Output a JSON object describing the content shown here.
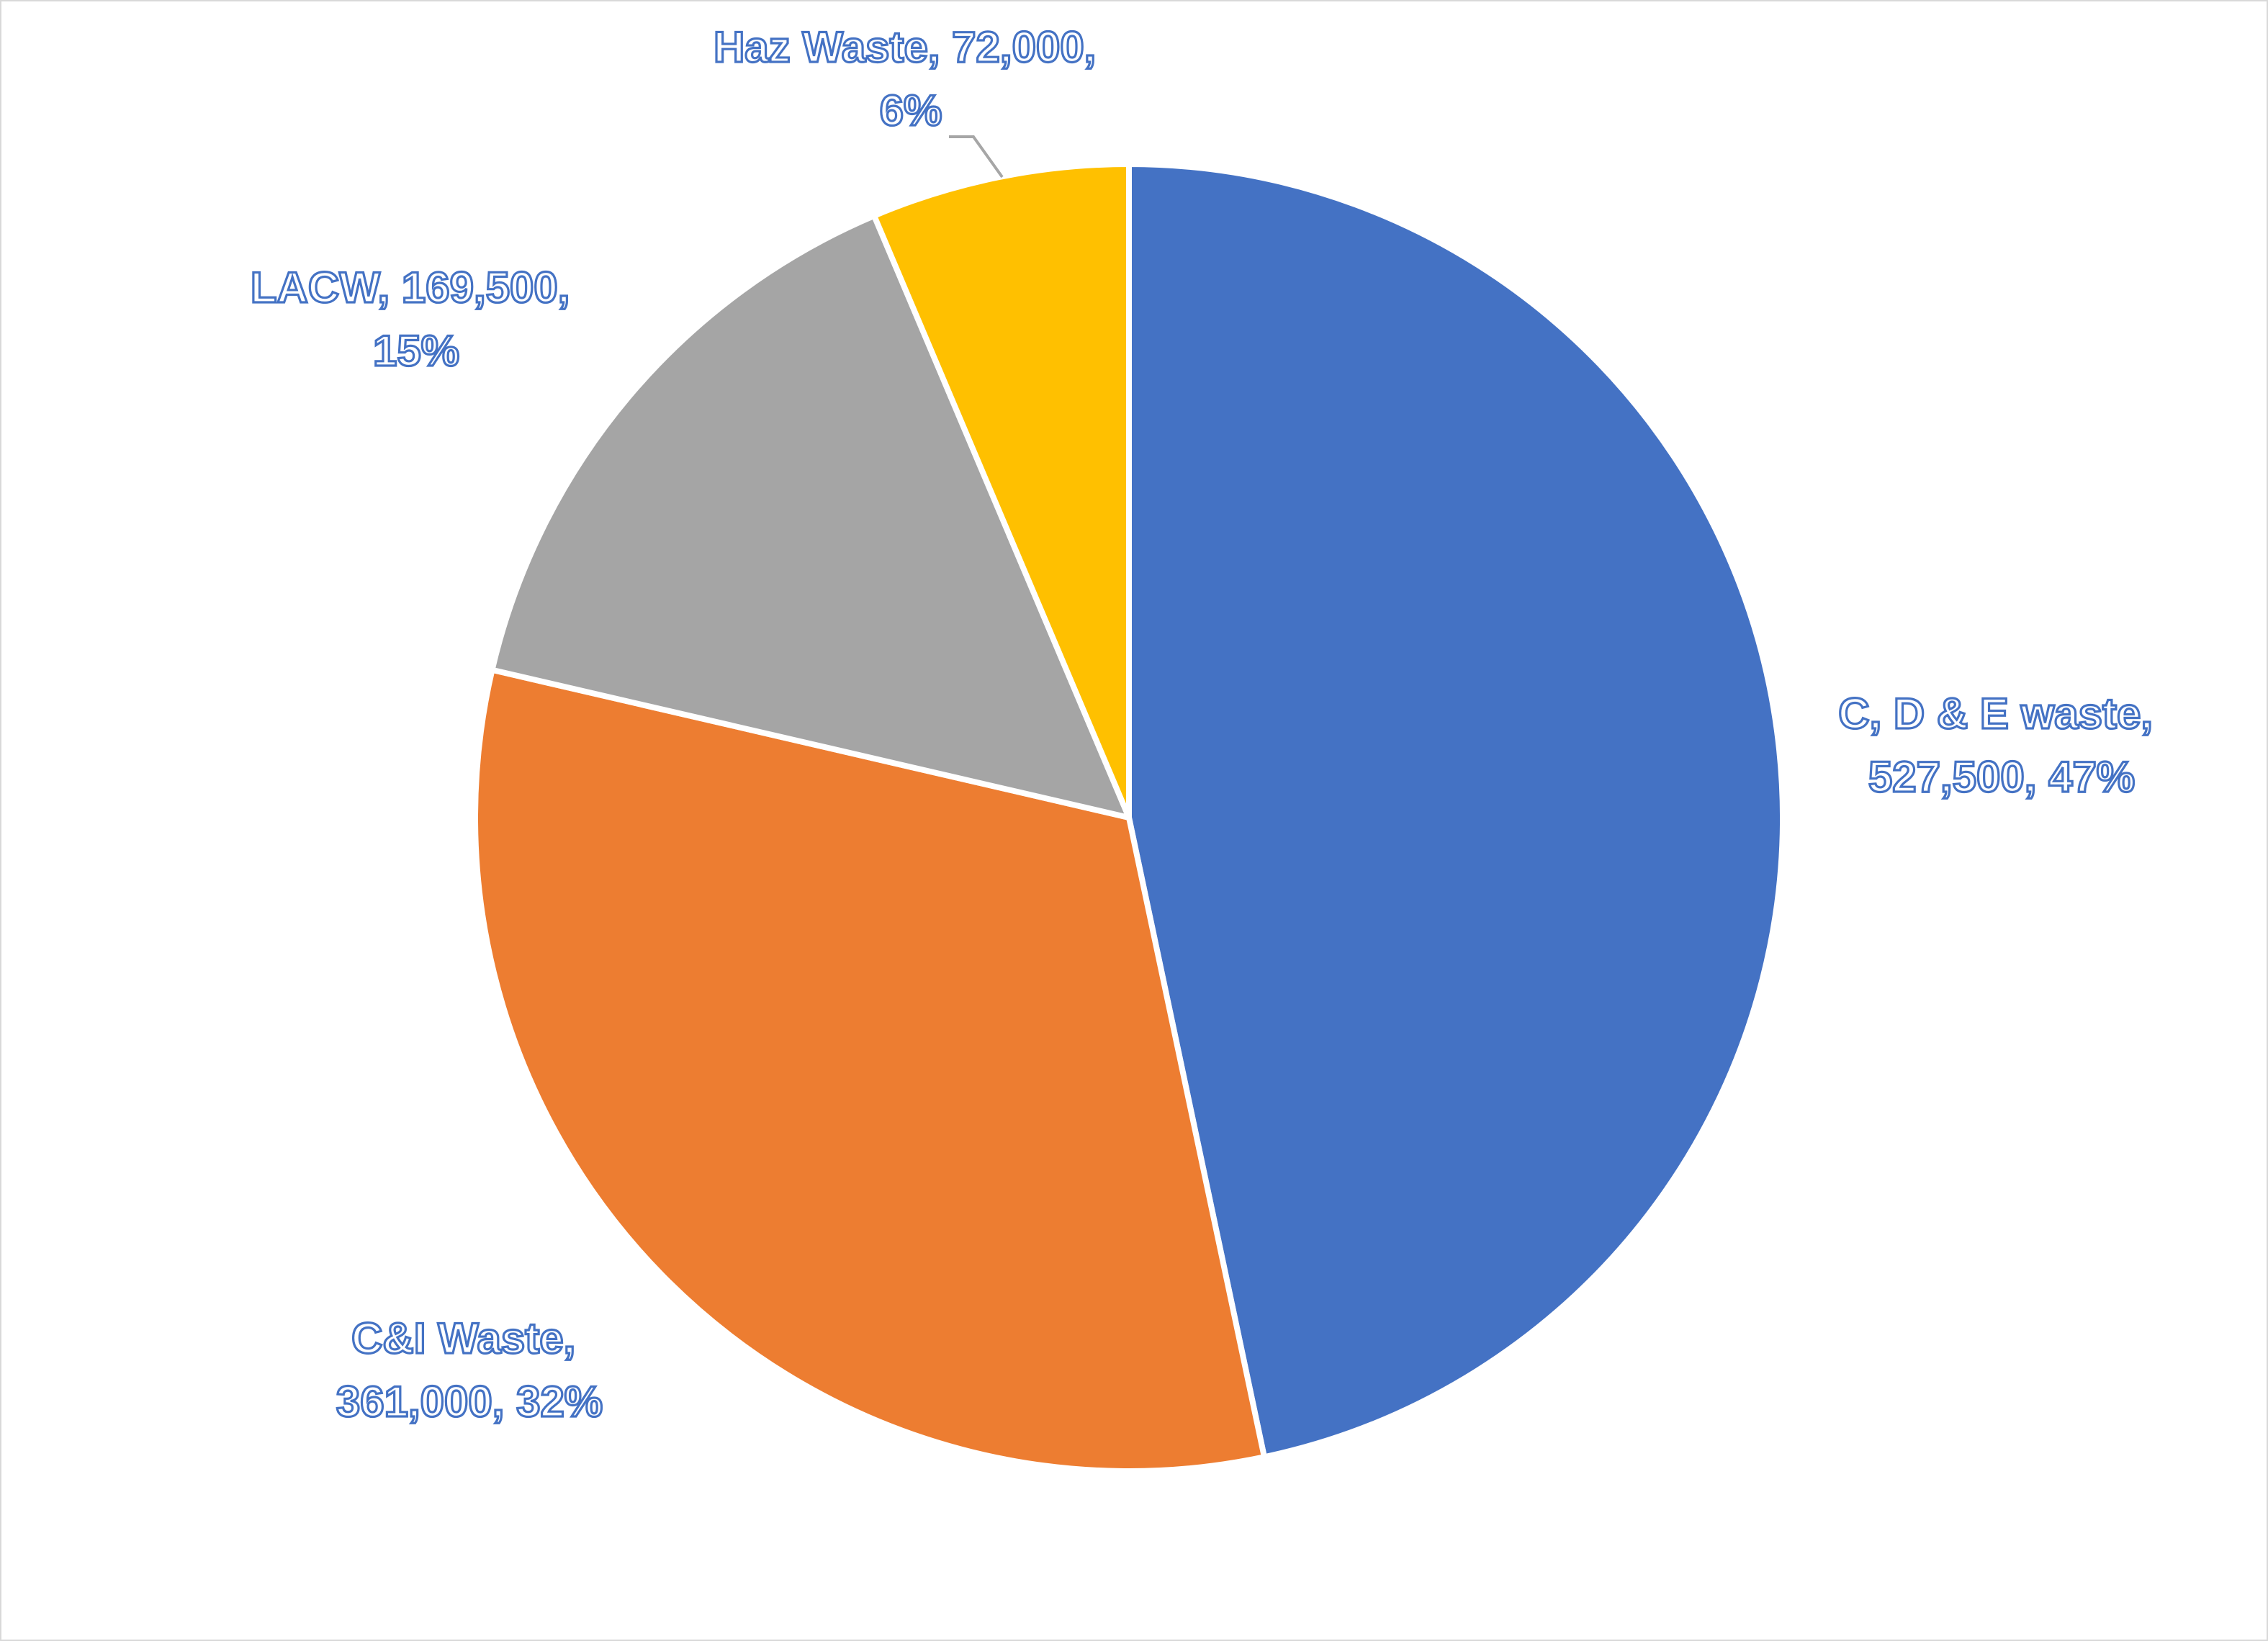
{
  "chart_data": {
    "type": "pie",
    "title": "",
    "start_angle_deg": 0,
    "direction": "clockwise",
    "colors": {
      "label_outline": "#4472c4",
      "slice_border": "#ffffff",
      "leader_line": "#a6a6a6",
      "frame_border": "#d9d9d9"
    },
    "slices": [
      {
        "name": "C, D & E waste",
        "value": 527500,
        "percent": 47,
        "color": "#4472c4",
        "label_lines": [
          "C, D & E waste,",
          "527,500, 47%"
        ]
      },
      {
        "name": "C&I Waste",
        "value": 361000,
        "percent": 32,
        "color": "#ed7d31",
        "label_lines": [
          "C&I Waste,",
          "361,000, 32%"
        ]
      },
      {
        "name": "LACW",
        "value": 169500,
        "percent": 15,
        "color": "#a5a5a5",
        "label_lines": [
          "LACW, 169,500,",
          "15%"
        ]
      },
      {
        "name": "Haz Waste",
        "value": 72000,
        "percent": 6,
        "color": "#ffc000",
        "label_lines": [
          "Haz Waste, 72,000,",
          "6%"
        ]
      }
    ]
  }
}
